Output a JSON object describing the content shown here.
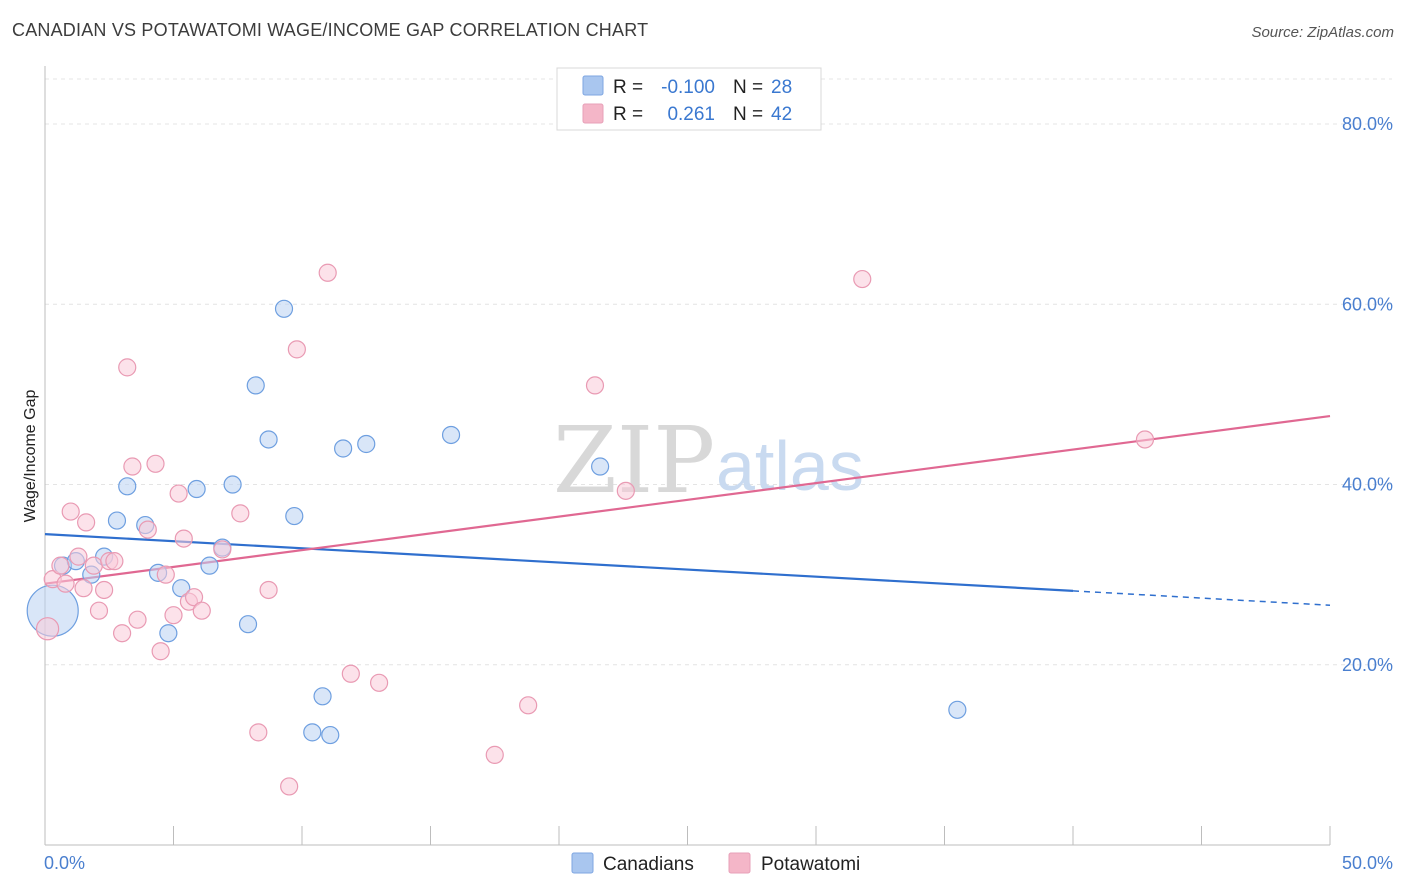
{
  "title": "CANADIAN VS POTAWATOMI WAGE/INCOME GAP CORRELATION CHART",
  "source": "Source: ZipAtlas.com",
  "watermark": {
    "zip": "ZIP",
    "atlas": "atlas"
  },
  "legend": {
    "r_label": "R =",
    "n_label": "N =",
    "rows": [
      {
        "r": "-0.100",
        "n": "28",
        "color": "#a9c6ef"
      },
      {
        "r": "0.261",
        "n": "42",
        "color": "#f4b6c8"
      }
    ]
  },
  "bottom_legend": [
    "Canadians",
    "Potawatomi"
  ],
  "chart_data": {
    "type": "scatter",
    "title": "CANADIAN VS POTAWATOMI WAGE/INCOME GAP CORRELATION CHART",
    "xlabel": "",
    "ylabel": "Wage/Income Gap",
    "xlim": [
      0,
      50
    ],
    "ylim": [
      0,
      85
    ],
    "x_tick_labels": [
      "0.0%",
      "50.0%"
    ],
    "y_ticks": [
      20,
      40,
      60,
      80
    ],
    "y_tick_labels": [
      "20.0%",
      "40.0%",
      "60.0%",
      "80.0%"
    ],
    "grid": true,
    "legend_position": "top-center",
    "series": [
      {
        "name": "Canadians",
        "color": "#6e9fe0",
        "fill": "#b9d1f2",
        "trend": {
          "x": [
            0,
            40
          ],
          "y": [
            34.5,
            28.2
          ],
          "dashed_to": [
            50,
            26.6
          ],
          "color": "#2f6fce"
        },
        "points": [
          [
            0.3,
            26.0,
            3
          ],
          [
            0.7,
            31.0,
            1
          ],
          [
            1.2,
            31.5,
            1
          ],
          [
            1.8,
            30.0,
            1
          ],
          [
            2.3,
            32.0,
            1
          ],
          [
            2.8,
            36.0,
            1
          ],
          [
            3.2,
            39.8,
            1
          ],
          [
            3.9,
            35.5,
            1
          ],
          [
            4.4,
            30.2,
            1
          ],
          [
            4.8,
            23.5,
            1
          ],
          [
            5.3,
            28.5,
            1
          ],
          [
            5.9,
            39.5,
            1
          ],
          [
            6.4,
            31.0,
            1
          ],
          [
            6.9,
            33.0,
            1
          ],
          [
            7.3,
            40.0,
            1
          ],
          [
            7.9,
            24.5,
            1
          ],
          [
            8.2,
            51.0,
            1
          ],
          [
            8.7,
            45.0,
            1
          ],
          [
            9.3,
            59.5,
            1
          ],
          [
            9.7,
            36.5,
            1
          ],
          [
            10.4,
            12.5,
            1
          ],
          [
            10.8,
            16.5,
            1
          ],
          [
            11.1,
            12.2,
            1
          ],
          [
            11.6,
            44.0,
            1
          ],
          [
            12.5,
            44.5,
            1
          ],
          [
            15.8,
            45.5,
            1
          ],
          [
            21.6,
            42.0,
            1
          ],
          [
            35.5,
            15.0,
            1
          ]
        ]
      },
      {
        "name": "Potawatomi",
        "color": "#e99ab3",
        "fill": "#f9cad8",
        "trend": {
          "x": [
            0,
            50
          ],
          "y": [
            29.0,
            47.6
          ],
          "color": "#e06892"
        },
        "points": [
          [
            0.1,
            24.0,
            1.3
          ],
          [
            0.3,
            29.5,
            1
          ],
          [
            0.6,
            31.0,
            1
          ],
          [
            0.8,
            29.0,
            1
          ],
          [
            1.0,
            37.0,
            1
          ],
          [
            1.3,
            32.0,
            1
          ],
          [
            1.5,
            28.5,
            1
          ],
          [
            1.6,
            35.8,
            1
          ],
          [
            1.9,
            31.0,
            1
          ],
          [
            2.1,
            26.0,
            1
          ],
          [
            2.3,
            28.3,
            1
          ],
          [
            2.5,
            31.5,
            1
          ],
          [
            2.7,
            31.5,
            1
          ],
          [
            3.0,
            23.5,
            1
          ],
          [
            3.2,
            53.0,
            1
          ],
          [
            3.4,
            42.0,
            1
          ],
          [
            3.6,
            25.0,
            1
          ],
          [
            4.0,
            35.0,
            1
          ],
          [
            4.3,
            42.3,
            1
          ],
          [
            4.5,
            21.5,
            1
          ],
          [
            4.7,
            30.0,
            1
          ],
          [
            5.0,
            25.5,
            1
          ],
          [
            5.2,
            39.0,
            1
          ],
          [
            5.4,
            34.0,
            1
          ],
          [
            5.6,
            27.0,
            1
          ],
          [
            5.8,
            27.5,
            1
          ],
          [
            6.1,
            26.0,
            1
          ],
          [
            6.9,
            32.8,
            1
          ],
          [
            7.6,
            36.8,
            1
          ],
          [
            8.3,
            12.5,
            1
          ],
          [
            8.7,
            28.3,
            1
          ],
          [
            9.5,
            6.5,
            1
          ],
          [
            9.8,
            55.0,
            1
          ],
          [
            11.0,
            63.5,
            1
          ],
          [
            11.9,
            19.0,
            1
          ],
          [
            13.0,
            18.0,
            1
          ],
          [
            17.5,
            10.0,
            1
          ],
          [
            18.8,
            15.5,
            1
          ],
          [
            21.4,
            51.0,
            1
          ],
          [
            22.6,
            39.3,
            1
          ],
          [
            31.8,
            62.8,
            1
          ],
          [
            42.8,
            45.0,
            1
          ]
        ]
      }
    ]
  }
}
